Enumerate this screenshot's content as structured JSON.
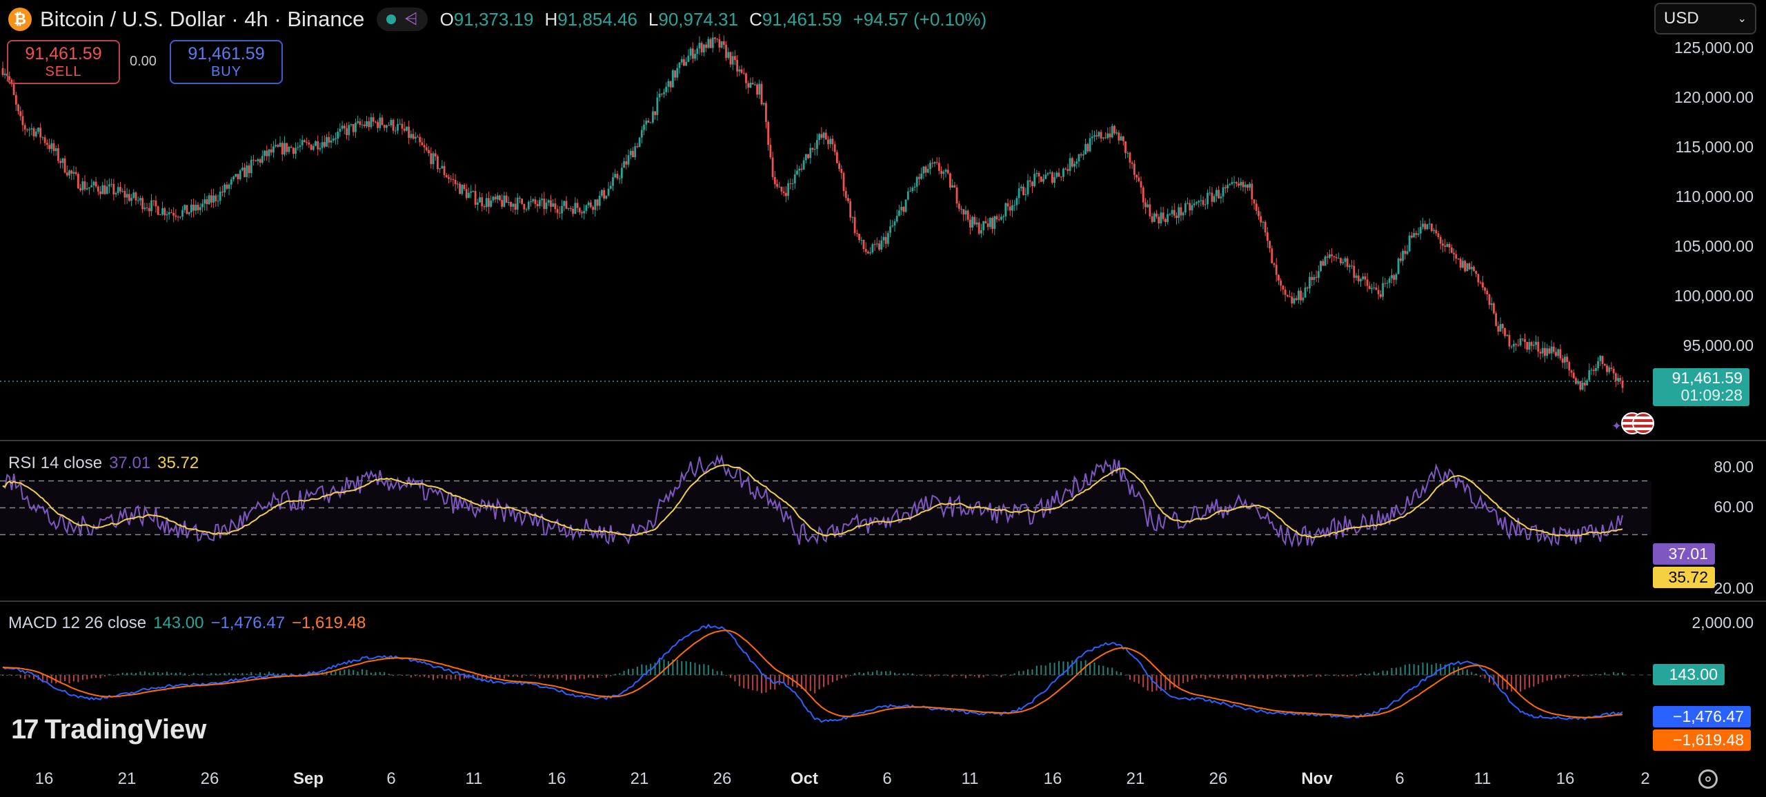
{
  "header": {
    "coin_symbol": "₿",
    "title": "Bitcoin / U.S. Dollar · 4h · Binance",
    "ohlc": [
      {
        "key": "O",
        "value": "91,373.19"
      },
      {
        "key": "H",
        "value": "91,854.46"
      },
      {
        "key": "L",
        "value": "90,974.31"
      },
      {
        "key": "C",
        "value": "91,461.59"
      }
    ],
    "change": "+94.57 (+0.10%)",
    "currency": "USD"
  },
  "trade": {
    "sell_price": "91,461.59",
    "sell_label": "SELL",
    "spread": "0.00",
    "buy_price": "91,461.59",
    "buy_label": "BUY"
  },
  "price_axis": [
    "125,000.00",
    "120,000.00",
    "115,000.00",
    "110,000.00",
    "105,000.00",
    "100,000.00",
    "95,000.00"
  ],
  "last_price": {
    "price": "91,461.59",
    "countdown": "01:09:28"
  },
  "rsi": {
    "label": "RSI 14 close",
    "value": "37.01",
    "ma": "35.72",
    "axis": [
      "80.00",
      "60.00",
      "20.00"
    ]
  },
  "macd": {
    "label": "MACD 12 26 close",
    "hist": "143.00",
    "macd": "−1,476.47",
    "signal": "−1,619.48",
    "axis": [
      "2,000.00"
    ]
  },
  "time_axis": [
    {
      "label": "16",
      "month": false
    },
    {
      "label": "21",
      "month": false
    },
    {
      "label": "26",
      "month": false
    },
    {
      "label": "Sep",
      "month": true
    },
    {
      "label": "6",
      "month": false
    },
    {
      "label": "11",
      "month": false
    },
    {
      "label": "16",
      "month": false
    },
    {
      "label": "21",
      "month": false
    },
    {
      "label": "26",
      "month": false
    },
    {
      "label": "Oct",
      "month": true
    },
    {
      "label": "6",
      "month": false
    },
    {
      "label": "11",
      "month": false
    },
    {
      "label": "16",
      "month": false
    },
    {
      "label": "21",
      "month": false
    },
    {
      "label": "26",
      "month": false
    },
    {
      "label": "Nov",
      "month": true
    },
    {
      "label": "6",
      "month": false
    },
    {
      "label": "11",
      "month": false
    },
    {
      "label": "16",
      "month": false
    },
    {
      "label": "2",
      "month": false
    }
  ],
  "brand": "TradingView",
  "colors": {
    "up": "#26a69a",
    "down": "#ef5350",
    "rsi": "#7e57c2",
    "rsi_ma": "#f5d142",
    "macd": "#2962ff",
    "signal": "#ff6d00"
  },
  "chart_data": {
    "type": "candlestick",
    "price_anchors": [
      [
        0,
        123000
      ],
      [
        10,
        117000
      ],
      [
        40,
        111000
      ],
      [
        80,
        108500
      ],
      [
        130,
        115000
      ],
      [
        170,
        117500
      ],
      [
        220,
        109500
      ],
      [
        260,
        109000
      ],
      [
        320,
        125500
      ],
      [
        340,
        121000
      ],
      [
        350,
        110500
      ],
      [
        370,
        116000
      ],
      [
        390,
        104500
      ],
      [
        420,
        113000
      ],
      [
        440,
        107000
      ],
      [
        470,
        112000
      ],
      [
        500,
        116500
      ],
      [
        520,
        108000
      ],
      [
        560,
        111000
      ],
      [
        580,
        99500
      ],
      [
        600,
        104000
      ],
      [
        620,
        100500
      ],
      [
        640,
        107000
      ],
      [
        660,
        103000
      ],
      [
        680,
        95500
      ],
      [
        700,
        94500
      ],
      [
        710,
        91000
      ],
      [
        720,
        93500
      ],
      [
        730,
        91461
      ]
    ],
    "rsi_anchors": [
      [
        0,
        70
      ],
      [
        30,
        35
      ],
      [
        60,
        45
      ],
      [
        90,
        30
      ],
      [
        130,
        55
      ],
      [
        170,
        70
      ],
      [
        220,
        48
      ],
      [
        255,
        35
      ],
      [
        280,
        30
      ],
      [
        320,
        85
      ],
      [
        345,
        60
      ],
      [
        360,
        30
      ],
      [
        390,
        38
      ],
      [
        420,
        52
      ],
      [
        460,
        45
      ],
      [
        500,
        80
      ],
      [
        520,
        40
      ],
      [
        560,
        52
      ],
      [
        580,
        28
      ],
      [
        620,
        40
      ],
      [
        650,
        75
      ],
      [
        680,
        35
      ],
      [
        710,
        28
      ],
      [
        730,
        37
      ]
    ],
    "macd_anchors": [
      [
        0,
        300
      ],
      [
        40,
        -900
      ],
      [
        80,
        -400
      ],
      [
        130,
        0
      ],
      [
        170,
        700
      ],
      [
        230,
        -300
      ],
      [
        270,
        -900
      ],
      [
        320,
        1900
      ],
      [
        350,
        -300
      ],
      [
        370,
        -1800
      ],
      [
        400,
        -1200
      ],
      [
        450,
        -1500
      ],
      [
        500,
        1200
      ],
      [
        530,
        -900
      ],
      [
        580,
        -1500
      ],
      [
        610,
        -1600
      ],
      [
        660,
        500
      ],
      [
        690,
        -1600
      ],
      [
        710,
        -1700
      ],
      [
        730,
        -1476
      ]
    ]
  }
}
